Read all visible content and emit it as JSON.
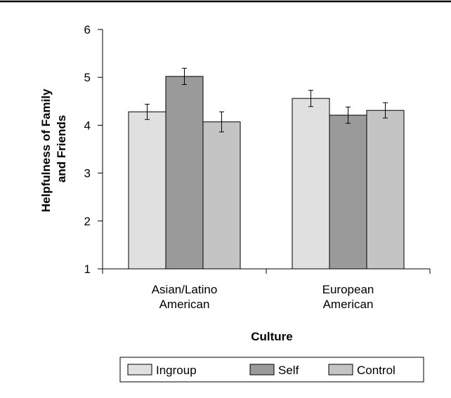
{
  "chart_data": {
    "type": "bar",
    "title": "",
    "xlabel": "Culture",
    "ylabel_lines": [
      "Helpfulness of Family",
      "and Friends"
    ],
    "ylim": [
      1,
      6
    ],
    "yticks": [
      1,
      2,
      3,
      4,
      5,
      6
    ],
    "categories": [
      {
        "lines": [
          "Asian/Latino",
          "American"
        ]
      },
      {
        "lines": [
          "European",
          "American"
        ]
      }
    ],
    "series": [
      {
        "name": "Ingroup",
        "color": "#e0e0e0",
        "values": [
          4.28,
          4.56
        ],
        "errors": [
          0.16,
          0.17
        ]
      },
      {
        "name": "Self",
        "color": "#9a9a9a",
        "values": [
          5.02,
          4.21
        ],
        "errors": [
          0.17,
          0.17
        ]
      },
      {
        "name": "Control",
        "color": "#c4c4c4",
        "values": [
          4.07,
          4.31
        ],
        "errors": [
          0.21,
          0.16
        ]
      }
    ],
    "grid": false,
    "legend_position": "bottom"
  }
}
